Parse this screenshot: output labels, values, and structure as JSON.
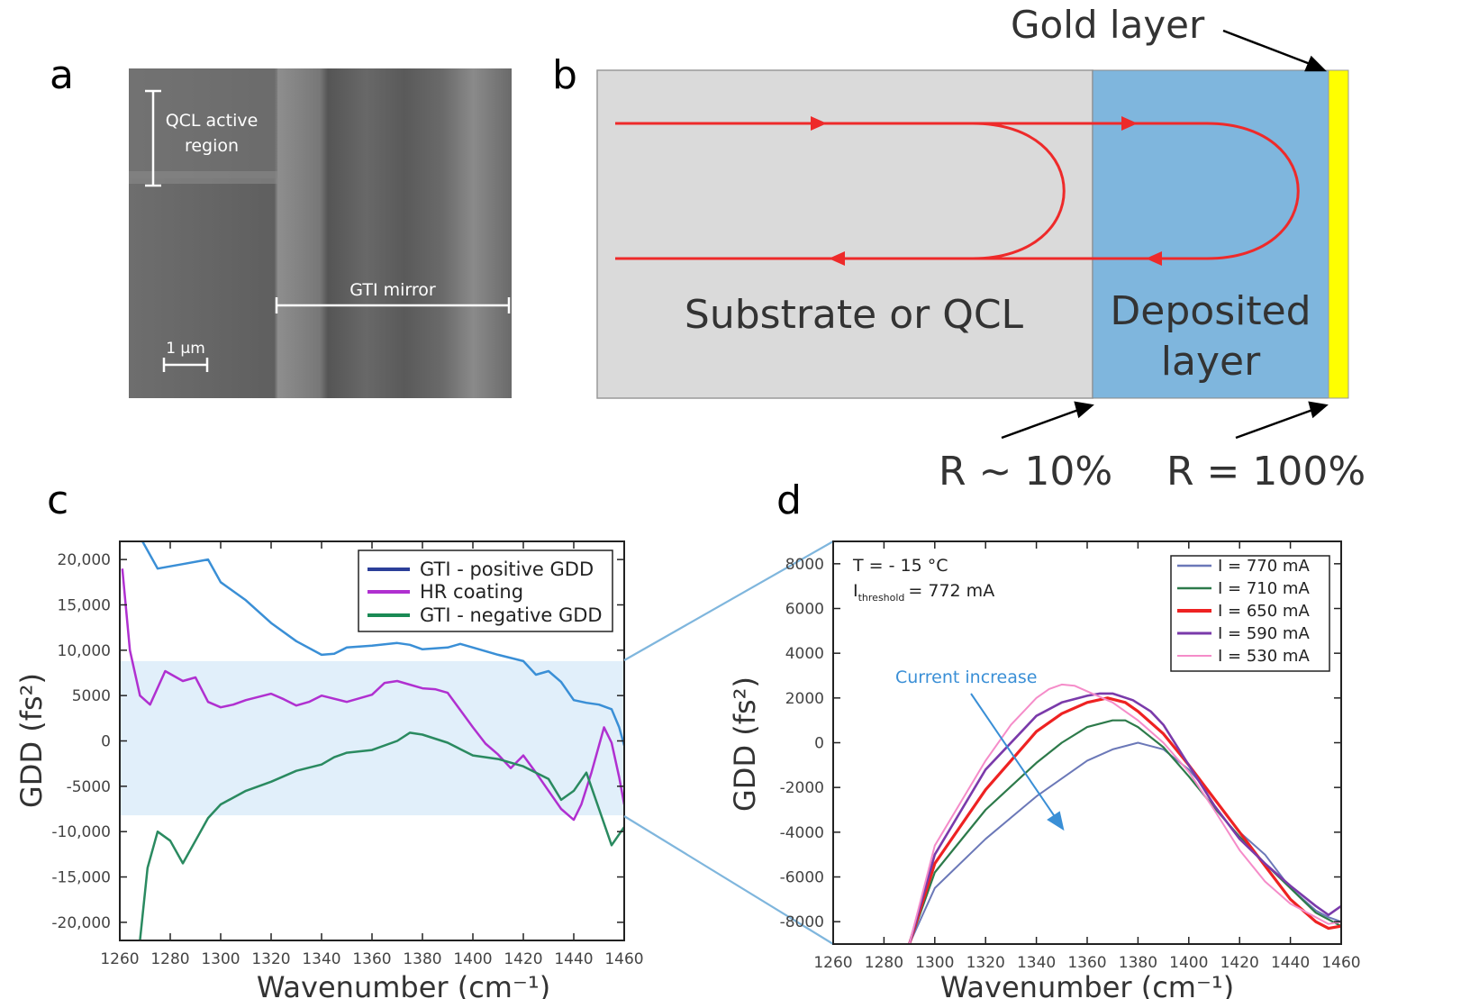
{
  "panel_letters": {
    "a": "a",
    "b": "b",
    "c": "c",
    "d": "d"
  },
  "panel_a": {
    "label_active": [
      "QCL active",
      "region"
    ],
    "label_mirror": "GTI mirror",
    "scale_label": "1 μm"
  },
  "panel_b": {
    "gold_label": "Gold layer",
    "substrate_label": "Substrate or QCL",
    "deposited_label": [
      "Deposited",
      "layer"
    ],
    "r_left": "R ~ 10%",
    "r_right": "R = 100%",
    "colors": {
      "substrate": "#dadada",
      "deposited": "#7fb6dd",
      "gold": "#ffff00",
      "ray": "#ee2a2a"
    }
  },
  "chart_data": [
    {
      "panel": "c",
      "type": "line",
      "xlabel": "Wavenumber (cm⁻¹)",
      "ylabel": "GDD (fs²)",
      "xlim": [
        1260,
        1460
      ],
      "ylim": [
        -22000,
        22000
      ],
      "xticks": [
        1260,
        1280,
        1300,
        1320,
        1340,
        1360,
        1380,
        1400,
        1420,
        1440,
        1460
      ],
      "yticks": [
        -20000,
        -15000,
        -10000,
        -5000,
        0,
        5000,
        10000,
        15000,
        20000
      ],
      "ytick_labels": [
        "-20,000",
        "-15,000",
        "-10,000",
        "-5000",
        "0",
        "5000",
        "10,000",
        "15,000",
        "20,000"
      ],
      "legend_position": "top-right",
      "highlight_band": [
        -8200,
        8800
      ],
      "series": [
        {
          "name": "GTI - positive GDD",
          "legend_color": "#2c3f99",
          "color": "#3a8fd6",
          "x": [
            1268,
            1275,
            1285,
            1295,
            1300,
            1310,
            1320,
            1330,
            1340,
            1345,
            1350,
            1360,
            1370,
            1375,
            1380,
            1390,
            1395,
            1400,
            1410,
            1420,
            1425,
            1430,
            1435,
            1440,
            1445,
            1450,
            1455,
            1458,
            1460
          ],
          "y": [
            22500,
            19000,
            19500,
            20000,
            17500,
            15500,
            13000,
            11000,
            9500,
            9600,
            10300,
            10500,
            10800,
            10600,
            10100,
            10300,
            10700,
            10300,
            9500,
            8800,
            7300,
            7700,
            6500,
            4500,
            4200,
            4000,
            3500,
            1500,
            -500
          ]
        },
        {
          "name": "HR coating",
          "legend_color": "#b030d0",
          "color": "#b030d0",
          "x": [
            1261,
            1264,
            1268,
            1272,
            1278,
            1285,
            1290,
            1295,
            1300,
            1305,
            1310,
            1320,
            1325,
            1330,
            1335,
            1340,
            1350,
            1360,
            1365,
            1370,
            1380,
            1385,
            1390,
            1400,
            1405,
            1410,
            1415,
            1420,
            1425,
            1430,
            1435,
            1440,
            1443,
            1447,
            1452,
            1455,
            1458,
            1460
          ],
          "y": [
            19000,
            10000,
            5000,
            4000,
            7700,
            6600,
            7000,
            4300,
            3700,
            4000,
            4500,
            5200,
            4600,
            3900,
            4300,
            5000,
            4300,
            5100,
            6400,
            6600,
            5800,
            5700,
            5300,
            1500,
            -300,
            -1500,
            -3000,
            -1600,
            -3500,
            -5500,
            -7500,
            -8700,
            -7000,
            -3500,
            1500,
            -200,
            -4000,
            -7000
          ]
        },
        {
          "name": "GTI - negative GDD",
          "legend_color": "#1a8a55",
          "color": "#2a8a60",
          "x": [
            1268,
            1271,
            1275,
            1280,
            1285,
            1290,
            1295,
            1300,
            1310,
            1320,
            1330,
            1340,
            1345,
            1350,
            1360,
            1370,
            1375,
            1380,
            1390,
            1395,
            1400,
            1410,
            1420,
            1430,
            1435,
            1440,
            1445,
            1450,
            1455,
            1460
          ],
          "y": [
            -22000,
            -14000,
            -10000,
            -11000,
            -13500,
            -11000,
            -8500,
            -7000,
            -5500,
            -4500,
            -3300,
            -2600,
            -1800,
            -1300,
            -1000,
            0,
            900,
            700,
            -200,
            -900,
            -1600,
            -2000,
            -2800,
            -4200,
            -6500,
            -5500,
            -3500,
            -7500,
            -11500,
            -9500
          ]
        }
      ]
    },
    {
      "panel": "d",
      "type": "line",
      "xlabel": "Wavenumber (cm⁻¹)",
      "ylabel": "GDD (fs²)",
      "xlim": [
        1260,
        1460
      ],
      "ylim": [
        -9000,
        9000
      ],
      "xticks": [
        1260,
        1280,
        1300,
        1320,
        1340,
        1360,
        1380,
        1400,
        1420,
        1440,
        1460
      ],
      "yticks": [
        -8000,
        -6000,
        -4000,
        -2000,
        0,
        2000,
        4000,
        6000,
        8000
      ],
      "annotations": [
        "T = - 15 °C",
        "I",
        "threshold",
        "= 772 mA"
      ],
      "arrow_label": "Current increase",
      "legend_position": "top-right",
      "series": [
        {
          "name": "I = 770 mA",
          "color": "#6b78b8",
          "x": [
            1290,
            1300,
            1320,
            1340,
            1360,
            1370,
            1380,
            1390,
            1400,
            1410,
            1420,
            1430,
            1440,
            1450,
            1455,
            1460
          ],
          "y": [
            -9000,
            -6500,
            -4300,
            -2400,
            -800,
            -300,
            0,
            -300,
            -1200,
            -2500,
            -4000,
            -5000,
            -6500,
            -7500,
            -7800,
            -8000
          ]
        },
        {
          "name": "I = 710 mA",
          "color": "#2d7a4a",
          "x": [
            1290,
            1300,
            1320,
            1340,
            1350,
            1360,
            1370,
            1375,
            1380,
            1390,
            1400,
            1410,
            1420,
            1430,
            1440,
            1450,
            1455,
            1460
          ],
          "y": [
            -9000,
            -5800,
            -3000,
            -900,
            0,
            700,
            1000,
            1000,
            700,
            -200,
            -1500,
            -2900,
            -4200,
            -5400,
            -6500,
            -7600,
            -7900,
            -8200
          ]
        },
        {
          "name": "I = 650 mA",
          "color": "#ee2222",
          "x": [
            1290,
            1300,
            1320,
            1340,
            1350,
            1360,
            1368,
            1375,
            1380,
            1390,
            1400,
            1410,
            1420,
            1430,
            1440,
            1450,
            1455,
            1460
          ],
          "y": [
            -9000,
            -5400,
            -2100,
            500,
            1300,
            1800,
            2000,
            1800,
            1400,
            400,
            -1000,
            -2500,
            -4000,
            -5500,
            -7000,
            -8000,
            -8300,
            -8200
          ]
        },
        {
          "name": "I = 590 mA",
          "color": "#7a3aaa",
          "x": [
            1290,
            1300,
            1320,
            1340,
            1350,
            1360,
            1365,
            1370,
            1378,
            1385,
            1390,
            1400,
            1410,
            1420,
            1430,
            1440,
            1450,
            1455,
            1460
          ],
          "y": [
            -9000,
            -5000,
            -1200,
            1200,
            1800,
            2100,
            2200,
            2200,
            1900,
            1400,
            800,
            -1000,
            -2800,
            -4300,
            -5400,
            -6400,
            -7300,
            -7700,
            -7300
          ]
        },
        {
          "name": "I = 530 mA",
          "color": "#f58cc9",
          "x": [
            1290,
            1300,
            1320,
            1330,
            1340,
            1345,
            1350,
            1355,
            1360,
            1370,
            1380,
            1390,
            1400,
            1410,
            1420,
            1430,
            1440,
            1450,
            1455,
            1460
          ],
          "y": [
            -9000,
            -4600,
            -800,
            800,
            2000,
            2400,
            2600,
            2550,
            2300,
            1800,
            1000,
            0,
            -1300,
            -3000,
            -4800,
            -6200,
            -7200,
            -7800,
            -8100,
            -8000
          ]
        }
      ]
    }
  ]
}
